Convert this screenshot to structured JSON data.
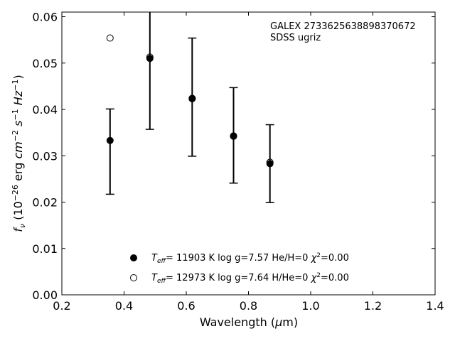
{
  "chart_data": {
    "type": "scatter",
    "title": "",
    "xlabel": "Wavelength (μm)",
    "ylabel": "fν (10⁻²⁶ erg cm⁻² s⁻¹ Hz⁻¹)",
    "xlim": [
      0.2,
      1.4
    ],
    "ylim": [
      0.0,
      0.061
    ],
    "xticks": [
      0.2,
      0.4,
      0.6,
      0.8,
      1.0,
      1.2,
      1.4
    ],
    "xtick_labels": [
      "0.2",
      "0.4",
      "0.6",
      "0.8",
      "1.0",
      "1.2",
      "1.4"
    ],
    "yticks": [
      0.0,
      0.01,
      0.02,
      0.03,
      0.04,
      0.05,
      0.06
    ],
    "ytick_labels": [
      "0.00",
      "0.01",
      "0.02",
      "0.03",
      "0.04",
      "0.05",
      "0.06"
    ],
    "grid": false,
    "annotations": [
      "GALEX 2733625638898370672",
      "SDSS ugriz"
    ],
    "observed": {
      "x": [
        0.355,
        0.483,
        0.619,
        0.752,
        0.869
      ],
      "y": [
        0.0333,
        0.0508,
        0.0424,
        0.0345,
        0.0284
      ],
      "err_low": [
        0.0217,
        0.0357,
        0.0299,
        0.0241,
        0.0199
      ],
      "err_high": [
        0.0401,
        0.0612,
        0.0554,
        0.0447,
        0.0367
      ]
    },
    "series": [
      {
        "name": "T_eff= 11903 K  log g=7.57  He/H=0  χ²=0.00",
        "marker": "filled-circle",
        "x": [
          0.355,
          0.483,
          0.619,
          0.752,
          0.869
        ],
        "y": [
          0.0333,
          0.051,
          0.0423,
          0.0343,
          0.0283
        ]
      },
      {
        "name": "T_eff= 12973 K  log g=7.64  H/He=0  χ²=0.00",
        "marker": "open-circle",
        "x": [
          0.355,
          0.483,
          0.619,
          0.752,
          0.869
        ],
        "y": [
          0.0554,
          0.0513,
          0.0424,
          0.0342,
          0.0286
        ]
      }
    ],
    "legend": {
      "placement": "lower-center",
      "entries": [
        {
          "teff": "= 11903 K  log g=7.57  He/H=0  ",
          "chi": "=0.00"
        },
        {
          "teff": "= 12973 K  log g=7.64  H/He=0  ",
          "chi": "=0.00"
        }
      ]
    }
  }
}
